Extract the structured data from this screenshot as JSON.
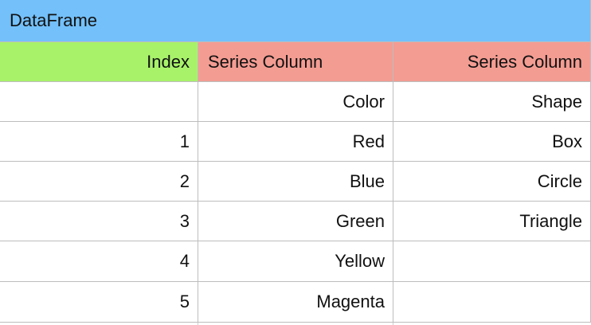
{
  "title": "DataFrame",
  "colors": {
    "title_bg": "#73C0FA",
    "index_header_bg": "#A8F26A",
    "series_header_bg": "#F39C92",
    "grid": "#BDBDBD"
  },
  "headers": [
    "Index",
    "Series Column",
    "Series Column"
  ],
  "rows": [
    [
      "",
      "Color",
      "Shape"
    ],
    [
      "1",
      "Red",
      "Box"
    ],
    [
      "2",
      "Blue",
      "Circle"
    ],
    [
      "3",
      "Green",
      "Triangle"
    ],
    [
      "4",
      "Yellow",
      ""
    ],
    [
      "5",
      "Magenta",
      ""
    ]
  ]
}
